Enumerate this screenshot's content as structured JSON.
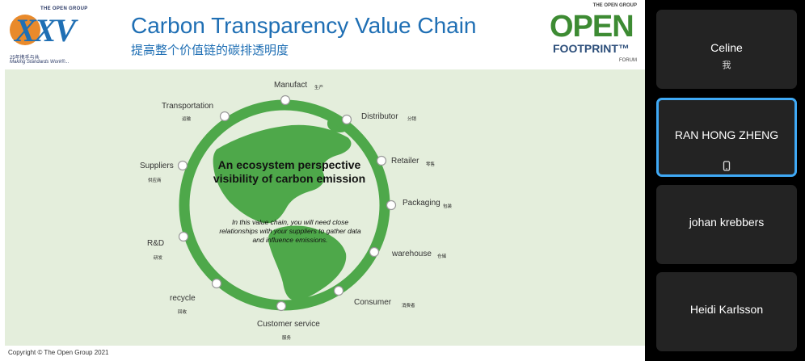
{
  "slide": {
    "header": {
      "xxv_logo": {
        "org": "THE OPEN GROUP",
        "mark": "XXV",
        "tagline_cn": "25年携手与共",
        "tagline_en": "Making Standards Work®..."
      },
      "title_en": "Carbon Transparency Value Chain",
      "title_cn": "提高整个价值链的碳排透明度",
      "of_logo": {
        "org": "THE OPEN GROUP",
        "open": "OPEN",
        "footprint": "FOOTPRINT™",
        "forum": "FORUM"
      }
    },
    "diagram": {
      "center_title": "An ecosystem perspective visibility of carbon emission",
      "center_text": "In this value chain, you will need close relationships with your suppliers to gather data and influence emissions.",
      "nodes": [
        {
          "label": "Manufact",
          "cn": "生产"
        },
        {
          "label": "Distributor",
          "cn": "分销"
        },
        {
          "label": "Retailer",
          "cn": "零售"
        },
        {
          "label": "Packaging",
          "cn": "包装"
        },
        {
          "label": "warehouse",
          "cn": "仓储"
        },
        {
          "label": "Consumer",
          "cn": "消费者"
        },
        {
          "label": "Customer service",
          "cn": "服务"
        },
        {
          "label": "recycle",
          "cn": "回收"
        },
        {
          "label": "R&D",
          "cn": "研发"
        },
        {
          "label": "Suppliers",
          "cn": "供应商"
        },
        {
          "label": "Transportation",
          "cn": "运输"
        }
      ],
      "colors": {
        "ring": "#4ea84a",
        "land": "#4ea84a",
        "node_fill": "#ffffff",
        "node_stroke": "#9a9a9a"
      }
    },
    "footer": {
      "copyright": "Copyright © The Open Group 2021"
    }
  },
  "participants": [
    {
      "name": "Celine",
      "sub": "我",
      "active": false
    },
    {
      "name": "RAN HONG ZHENG",
      "sub": "",
      "icon": "phone-icon",
      "active": true
    },
    {
      "name": "johan krebbers",
      "sub": "",
      "active": false
    },
    {
      "name": "Heidi Karlsson",
      "sub": "",
      "active": false
    }
  ],
  "accent": "#3fa9f5"
}
